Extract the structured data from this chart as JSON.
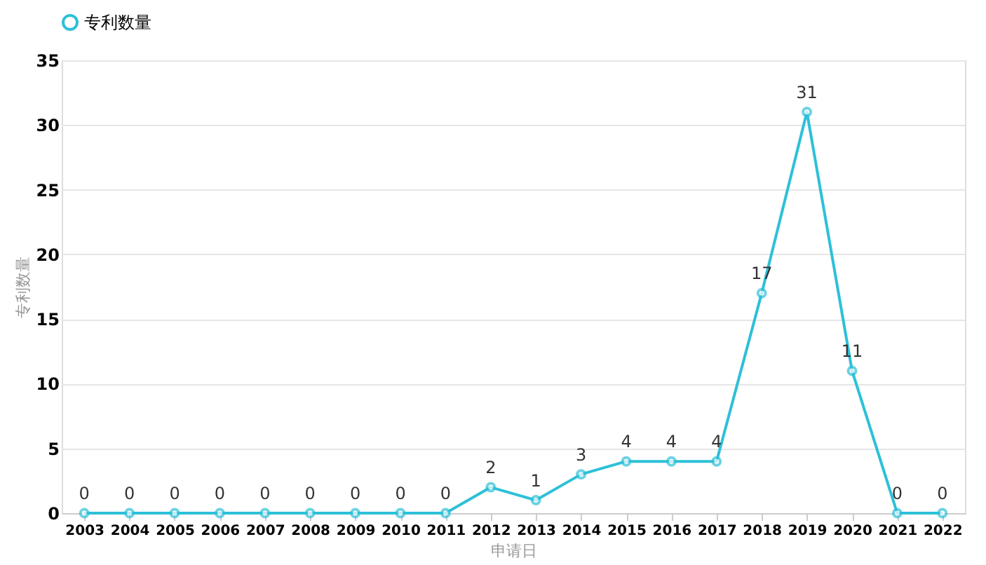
{
  "chart_data": {
    "type": "line",
    "xlabel": "申请日",
    "ylabel": "专利数量",
    "categories": [
      "2003",
      "2004",
      "2005",
      "2006",
      "2007",
      "2008",
      "2009",
      "2010",
      "2011",
      "2012",
      "2013",
      "2014",
      "2015",
      "2016",
      "2017",
      "2018",
      "2019",
      "2020",
      "2021",
      "2022"
    ],
    "series": [
      {
        "name": "专利数量",
        "color": "#2ec0d8",
        "values": [
          0,
          0,
          0,
          0,
          0,
          0,
          0,
          0,
          0,
          2,
          1,
          3,
          4,
          4,
          4,
          17,
          31,
          11,
          0,
          0
        ]
      }
    ],
    "ylim": [
      0,
      35
    ],
    "yticks": [
      0,
      5,
      10,
      15,
      20,
      25,
      30,
      35
    ],
    "grid": "y",
    "legend": "top",
    "marker": "circle",
    "line_style": "solid",
    "data_labels": true
  }
}
